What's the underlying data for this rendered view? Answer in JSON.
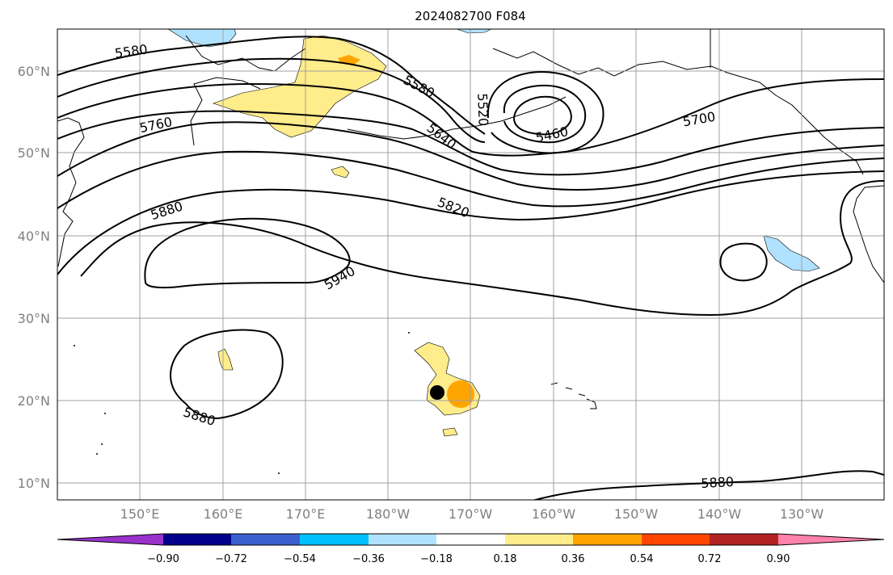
{
  "title": "2024082700 F084",
  "lat_ticks": [
    "60°N",
    "50°N",
    "40°N",
    "30°N",
    "20°N",
    "10°N"
  ],
  "lon_ticks": [
    "150°E",
    "160°E",
    "170°E",
    "180°W",
    "170°W",
    "160°W",
    "150°W",
    "140°W",
    "130°W"
  ],
  "contour_labels": [
    "5580",
    "5760",
    "5580",
    "5640",
    "5520",
    "5460",
    "5700",
    "5880",
    "5820",
    "5940",
    "5880",
    "5880"
  ],
  "colorbar": {
    "ticks": [
      "−0.90",
      "−0.72",
      "−0.54",
      "−0.36",
      "−0.18",
      "0.18",
      "0.36",
      "0.54",
      "0.72",
      "0.90"
    ],
    "colors": [
      "#9932cc",
      "#00008b",
      "#3a5fcd",
      "#00bfff",
      "#b0e2ff",
      "#ffffff",
      "#ffec8b",
      "#ffa500",
      "#ff4500",
      "#b22222",
      "#ff82ab"
    ]
  }
}
